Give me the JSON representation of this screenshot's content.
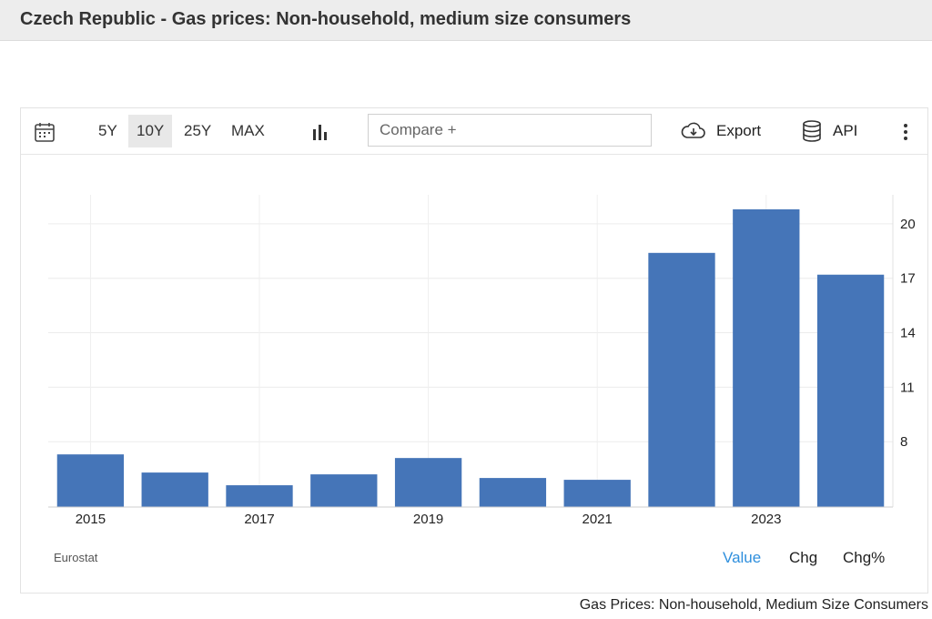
{
  "page_title": "Czech Republic - Gas prices: Non-household, medium size consumers",
  "toolbar": {
    "ranges": [
      "5Y",
      "10Y",
      "25Y",
      "MAX"
    ],
    "active_range": "10Y",
    "compare_placeholder": "Compare +",
    "export_label": "Export",
    "api_label": "API"
  },
  "source_label": "Eurostat",
  "view_tabs": [
    "Value",
    "Chg",
    "Chg%"
  ],
  "active_view": "Value",
  "footer_caption": "Gas Prices: Non-household, Medium Size Consumers",
  "colors": {
    "bar": "#4575b8",
    "active_tab": "#2f8fdd"
  },
  "chart_data": {
    "type": "bar",
    "categories": [
      "2015",
      "2016",
      "2017",
      "2018",
      "2019",
      "2020",
      "2021",
      "2022",
      "2023",
      "2024"
    ],
    "values": [
      7.3,
      6.3,
      5.6,
      6.2,
      7.1,
      6.0,
      5.9,
      18.4,
      20.8,
      17.2
    ],
    "x_tick_labels": [
      "2015",
      "2017",
      "2019",
      "2021",
      "2023"
    ],
    "y_ticks": [
      8,
      11,
      14,
      17,
      20
    ],
    "y_axis_position": "right",
    "ylim": [
      4.4,
      21.6
    ],
    "grid": true
  }
}
